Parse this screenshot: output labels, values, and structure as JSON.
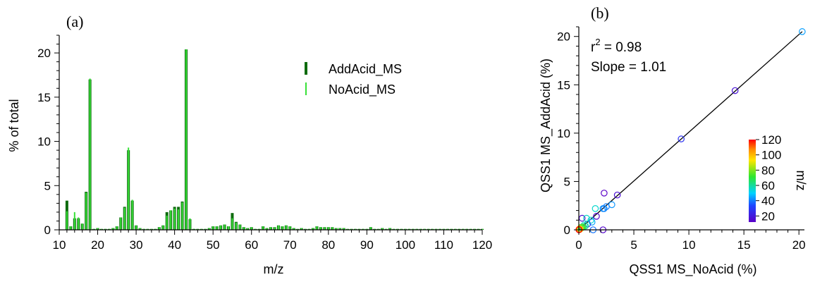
{
  "colors": {
    "add_acid": "#0e6b0e",
    "no_acid": "#38e038",
    "fit_line": "#000000"
  },
  "chart_data": [
    {
      "type": "bar",
      "panel_label": "(a)",
      "xlabel": "m/z",
      "ylabel": "% of total",
      "xlim": [
        10,
        120
      ],
      "ylim": [
        0,
        22
      ],
      "xticks": [
        "10",
        "20",
        "30",
        "40",
        "50",
        "60",
        "70",
        "80",
        "90",
        "100",
        "110",
        "120"
      ],
      "yticks": [
        "0",
        "5",
        "10",
        "15",
        "20"
      ],
      "legend": [
        "AddAcid_MS",
        "NoAcid_MS"
      ],
      "legend_position": "top-right",
      "x": [
        12,
        13,
        14,
        15,
        16,
        17,
        18,
        19,
        20,
        21,
        22,
        23,
        24,
        25,
        26,
        27,
        28,
        29,
        30,
        31,
        32,
        33,
        34,
        35,
        36,
        37,
        38,
        39,
        40,
        41,
        42,
        43,
        44,
        45,
        46,
        47,
        48,
        49,
        50,
        51,
        52,
        53,
        54,
        55,
        56,
        57,
        58,
        59,
        60,
        61,
        62,
        63,
        64,
        65,
        66,
        67,
        68,
        69,
        70,
        71,
        72,
        73,
        74,
        75,
        76,
        77,
        78,
        79,
        80,
        81,
        82,
        83,
        84,
        85,
        86,
        87,
        88,
        89,
        90,
        91,
        92,
        93,
        94,
        95,
        96,
        97,
        98,
        99,
        100,
        101,
        102,
        103,
        104,
        105,
        106,
        107,
        108,
        109,
        110,
        111,
        112,
        113,
        114,
        115,
        116,
        117,
        118,
        119,
        120
      ],
      "series": [
        {
          "name": "AddAcid_MS",
          "values": [
            3.3,
            0.4,
            1.3,
            1.3,
            0.7,
            4.3,
            17.0,
            0.1,
            0.2,
            0.1,
            0.1,
            0.1,
            0.2,
            0.4,
            1.4,
            2.6,
            9.0,
            3.3,
            0.5,
            0.2,
            0.1,
            0.1,
            0.1,
            0.1,
            0.3,
            0.5,
            2.0,
            2.2,
            2.6,
            2.6,
            3.2,
            20.4,
            1.2,
            0.1,
            0.1,
            0.1,
            0.1,
            0.2,
            0.4,
            0.4,
            0.5,
            0.6,
            0.4,
            1.9,
            0.9,
            0.6,
            0.3,
            0.2,
            0.3,
            0.1,
            0.1,
            0.4,
            0.2,
            0.3,
            0.3,
            0.5,
            0.4,
            0.5,
            0.4,
            0.2,
            0.1,
            0.2,
            0.1,
            0.1,
            0.2,
            0.4,
            0.3,
            0.3,
            0.3,
            0.3,
            0.2,
            0.2,
            0.2,
            0.1,
            0.1,
            0.1,
            0.1,
            0.1,
            0.1,
            0.3,
            0.1,
            0.1,
            0.2,
            0.1,
            0.2,
            0.1,
            0.1,
            0.1,
            0.1,
            0.1,
            0.1,
            0.1,
            0.1,
            0.1,
            0.1,
            0.1,
            0.1,
            0.1,
            0.1,
            0.1,
            0.1,
            0.1,
            0.1,
            0.1,
            0.1,
            0.1,
            0.1,
            0.1,
            0.1
          ]
        },
        {
          "name": "NoAcid_MS",
          "values": [
            2.1,
            0.4,
            2.0,
            1.4,
            0.7,
            4.2,
            17.1,
            0.1,
            0.2,
            0.1,
            0.1,
            0.1,
            0.2,
            0.4,
            1.4,
            2.5,
            9.3,
            3.4,
            0.5,
            0.2,
            0.1,
            0.1,
            0.1,
            0.1,
            0.3,
            0.5,
            1.6,
            2.2,
            2.4,
            2.3,
            3.1,
            20.4,
            1.3,
            0.1,
            0.1,
            0.1,
            0.1,
            0.2,
            0.4,
            0.4,
            0.5,
            0.6,
            0.4,
            1.3,
            0.8,
            0.6,
            0.3,
            0.2,
            0.3,
            0.1,
            0.1,
            0.4,
            0.2,
            0.3,
            0.3,
            0.5,
            0.4,
            0.5,
            0.4,
            0.2,
            0.1,
            0.2,
            0.1,
            0.1,
            0.2,
            0.4,
            0.3,
            0.3,
            0.3,
            0.3,
            0.2,
            0.2,
            0.2,
            0.1,
            0.1,
            0.1,
            0.1,
            0.1,
            0.1,
            0.3,
            0.1,
            0.1,
            0.2,
            0.1,
            0.2,
            0.1,
            0.1,
            0.1,
            0.1,
            0.1,
            0.1,
            0.1,
            0.1,
            0.1,
            0.1,
            0.1,
            0.1,
            0.1,
            0.1,
            0.1,
            0.1,
            0.1,
            0.1,
            0.1,
            0.1,
            0.1,
            0.1,
            0.1,
            0.1
          ]
        }
      ]
    },
    {
      "type": "scatter",
      "panel_label": "(b)",
      "xlabel": "QSS1 MS_NoAcid (%)",
      "ylabel": "QSS1 MS_AddAcid (%)",
      "xlim": [
        0,
        20.5
      ],
      "ylim": [
        0,
        21
      ],
      "xticks": [
        "0",
        "5",
        "10",
        "15",
        "20"
      ],
      "yticks": [
        "0",
        "5",
        "10",
        "15",
        "20"
      ],
      "annotation_r2_prefix": "r",
      "annotation_r2_exponent": "2",
      "annotation_r2_value": " = 0.98",
      "annotation_slope": "Slope = 1.01",
      "fit_slope": 1.01,
      "colorbar": {
        "label": "m/z",
        "ticks": [
          "20",
          "40",
          "60",
          "80",
          "100",
          "120"
        ],
        "range": [
          12,
          120
        ],
        "position": "bottom-right"
      },
      "points": [
        {
          "x": 20.3,
          "y": 20.5,
          "c": 44
        },
        {
          "x": 14.2,
          "y": 14.4,
          "c": 18
        },
        {
          "x": 9.3,
          "y": 9.4,
          "c": 28
        },
        {
          "x": 3.5,
          "y": 3.6,
          "c": 17
        },
        {
          "x": 2.3,
          "y": 3.8,
          "c": 12
        },
        {
          "x": 2.2,
          "y": 0.0,
          "c": 14
        },
        {
          "x": 0.3,
          "y": 1.2,
          "c": 16
        },
        {
          "x": 3.0,
          "y": 2.6,
          "c": 43
        },
        {
          "x": 2.5,
          "y": 2.4,
          "c": 40
        },
        {
          "x": 2.2,
          "y": 2.2,
          "c": 42
        },
        {
          "x": 1.6,
          "y": 1.4,
          "c": 15
        },
        {
          "x": 1.5,
          "y": 2.2,
          "c": 55
        },
        {
          "x": 2.3,
          "y": 2.2,
          "c": 41
        },
        {
          "x": 1.3,
          "y": 0.0,
          "c": 39
        },
        {
          "x": 1.2,
          "y": 0.8,
          "c": 45
        },
        {
          "x": 0.8,
          "y": 0.6,
          "c": 26
        },
        {
          "x": 0.7,
          "y": 1.2,
          "c": 56
        },
        {
          "x": 1.1,
          "y": 1.0,
          "c": 54
        },
        {
          "x": 0.5,
          "y": 0.5,
          "c": 57
        },
        {
          "x": 0.6,
          "y": 0.4,
          "c": 60
        },
        {
          "x": 0.4,
          "y": 0.3,
          "c": 67
        },
        {
          "x": 0.3,
          "y": 0.3,
          "c": 69
        },
        {
          "x": 0.25,
          "y": 0.2,
          "c": 73
        },
        {
          "x": 0.2,
          "y": 0.25,
          "c": 77
        },
        {
          "x": 0.15,
          "y": 0.1,
          "c": 81
        },
        {
          "x": 0.1,
          "y": 0.1,
          "c": 85
        },
        {
          "x": 0.1,
          "y": 0.05,
          "c": 91
        },
        {
          "x": 0.05,
          "y": 0.1,
          "c": 95
        },
        {
          "x": 0.05,
          "y": 0.05,
          "c": 100
        },
        {
          "x": 0.02,
          "y": 0.02,
          "c": 105
        },
        {
          "x": 0.03,
          "y": 0.02,
          "c": 110
        },
        {
          "x": 0.02,
          "y": 0.03,
          "c": 115
        },
        {
          "x": 0.01,
          "y": 0.01,
          "c": 120
        }
      ]
    }
  ]
}
